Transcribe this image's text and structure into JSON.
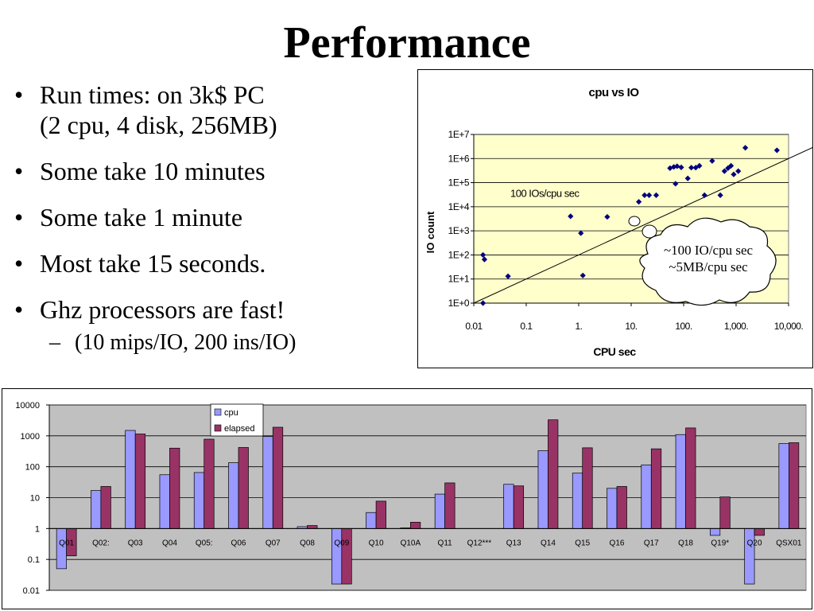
{
  "slide": {
    "title": "Performance",
    "bullets": [
      {
        "line1": "Run times: on 3k$ PC",
        "line2": "(2 cpu, 4 disk, 256MB)"
      },
      {
        "line1": "Some take 10 minutes"
      },
      {
        "line1": "Some take 1 minute"
      },
      {
        "line1": "Most take 15 seconds."
      },
      {
        "line1": "Ghz processors are fast!"
      }
    ],
    "sub_bullet": "(10 mips/IO, 200 ins/IO)",
    "bullet_glyph": "•",
    "sub_glyph": "–"
  },
  "chart_data": [
    {
      "type": "scatter",
      "title": "cpu vs IO",
      "xlabel": "CPU sec",
      "ylabel": "IO count",
      "x_scale": "log",
      "y_scale": "log",
      "xlim": [
        0.01,
        10000
      ],
      "ylim": [
        1,
        10000000
      ],
      "x_ticks": [
        0.01,
        0.1,
        1,
        10,
        100,
        1000,
        10000
      ],
      "x_tick_labels": [
        "0.01",
        "0.1",
        "1.",
        "10.",
        "100.",
        "1,000.",
        "10,000."
      ],
      "y_ticks": [
        1,
        10,
        100,
        1000,
        10000,
        100000,
        1000000,
        10000000
      ],
      "y_tick_labels": [
        "1E+0",
        "1E+1",
        "1E+2",
        "1E+3",
        "1E+4",
        "1E+5",
        "1E+6",
        "1E+7"
      ],
      "grid": "horizontal",
      "plot_background": "#ffffcc",
      "point_color": "#000080",
      "points": [
        {
          "x": 0.015,
          "y": 100
        },
        {
          "x": 0.016,
          "y": 65
        },
        {
          "x": 0.015,
          "y": 1
        },
        {
          "x": 0.045,
          "y": 13
        },
        {
          "x": 0.7,
          "y": 4000
        },
        {
          "x": 1.1,
          "y": 800
        },
        {
          "x": 1.2,
          "y": 14
        },
        {
          "x": 3.5,
          "y": 3800
        },
        {
          "x": 14,
          "y": 16000
        },
        {
          "x": 18,
          "y": 30000
        },
        {
          "x": 22,
          "y": 30000
        },
        {
          "x": 30,
          "y": 30000
        },
        {
          "x": 55,
          "y": 400000
        },
        {
          "x": 65,
          "y": 450000
        },
        {
          "x": 75,
          "y": 480000
        },
        {
          "x": 90,
          "y": 430000
        },
        {
          "x": 70,
          "y": 90000
        },
        {
          "x": 120,
          "y": 150000
        },
        {
          "x": 140,
          "y": 420000
        },
        {
          "x": 170,
          "y": 420000
        },
        {
          "x": 200,
          "y": 500000
        },
        {
          "x": 250,
          "y": 30000
        },
        {
          "x": 350,
          "y": 800000
        },
        {
          "x": 500,
          "y": 30000
        },
        {
          "x": 600,
          "y": 300000
        },
        {
          "x": 700,
          "y": 400000
        },
        {
          "x": 800,
          "y": 500000
        },
        {
          "x": 900,
          "y": 220000
        },
        {
          "x": 1100,
          "y": 300000
        },
        {
          "x": 1500,
          "y": 2800000
        },
        {
          "x": 6000,
          "y": 2200000
        }
      ],
      "reference_line": {
        "label": "100 IOs/cpu sec",
        "ios_per_cpu_sec": 100
      },
      "callout": {
        "line1": "~100 IO/cpu sec",
        "line2": "~5MB/cpu sec"
      }
    },
    {
      "type": "bar",
      "y_scale": "log",
      "ylim": [
        0.01,
        10000
      ],
      "y_ticks": [
        0.01,
        0.1,
        1,
        10,
        100,
        1000,
        10000
      ],
      "y_tick_labels": [
        "0.01",
        "0.1",
        "1",
        "10",
        "100",
        "1000",
        "10000"
      ],
      "grid": "horizontal",
      "plot_background": "#c0c0c0",
      "legend": "top-center",
      "categories": [
        "Q01",
        "Q02:",
        "Q03",
        "Q04",
        "Q05:",
        "Q06",
        "Q07",
        "Q08",
        "Q09",
        "Q10",
        "Q10A",
        "Q11",
        "Q12***",
        "Q13",
        "Q14",
        "Q15",
        "Q16",
        "Q17",
        "Q18",
        "Q19*",
        "Q20",
        "QSX01"
      ],
      "series": [
        {
          "name": "cpu",
          "color": "#9999ff",
          "values": [
            0.05,
            17,
            1500,
            55,
            65,
            135,
            950,
            1.15,
            0.016,
            3.3,
            1.05,
            13,
            null,
            27,
            330,
            62,
            20,
            115,
            1100,
            0.6,
            0.016,
            560
          ]
        },
        {
          "name": "elapsed",
          "color": "#993366",
          "values": [
            0.13,
            23,
            1150,
            400,
            780,
            420,
            1900,
            1.25,
            0.016,
            7.7,
            1.6,
            30,
            null,
            24,
            3300,
            410,
            23,
            380,
            1800,
            10.5,
            0.6,
            600
          ]
        }
      ]
    }
  ]
}
